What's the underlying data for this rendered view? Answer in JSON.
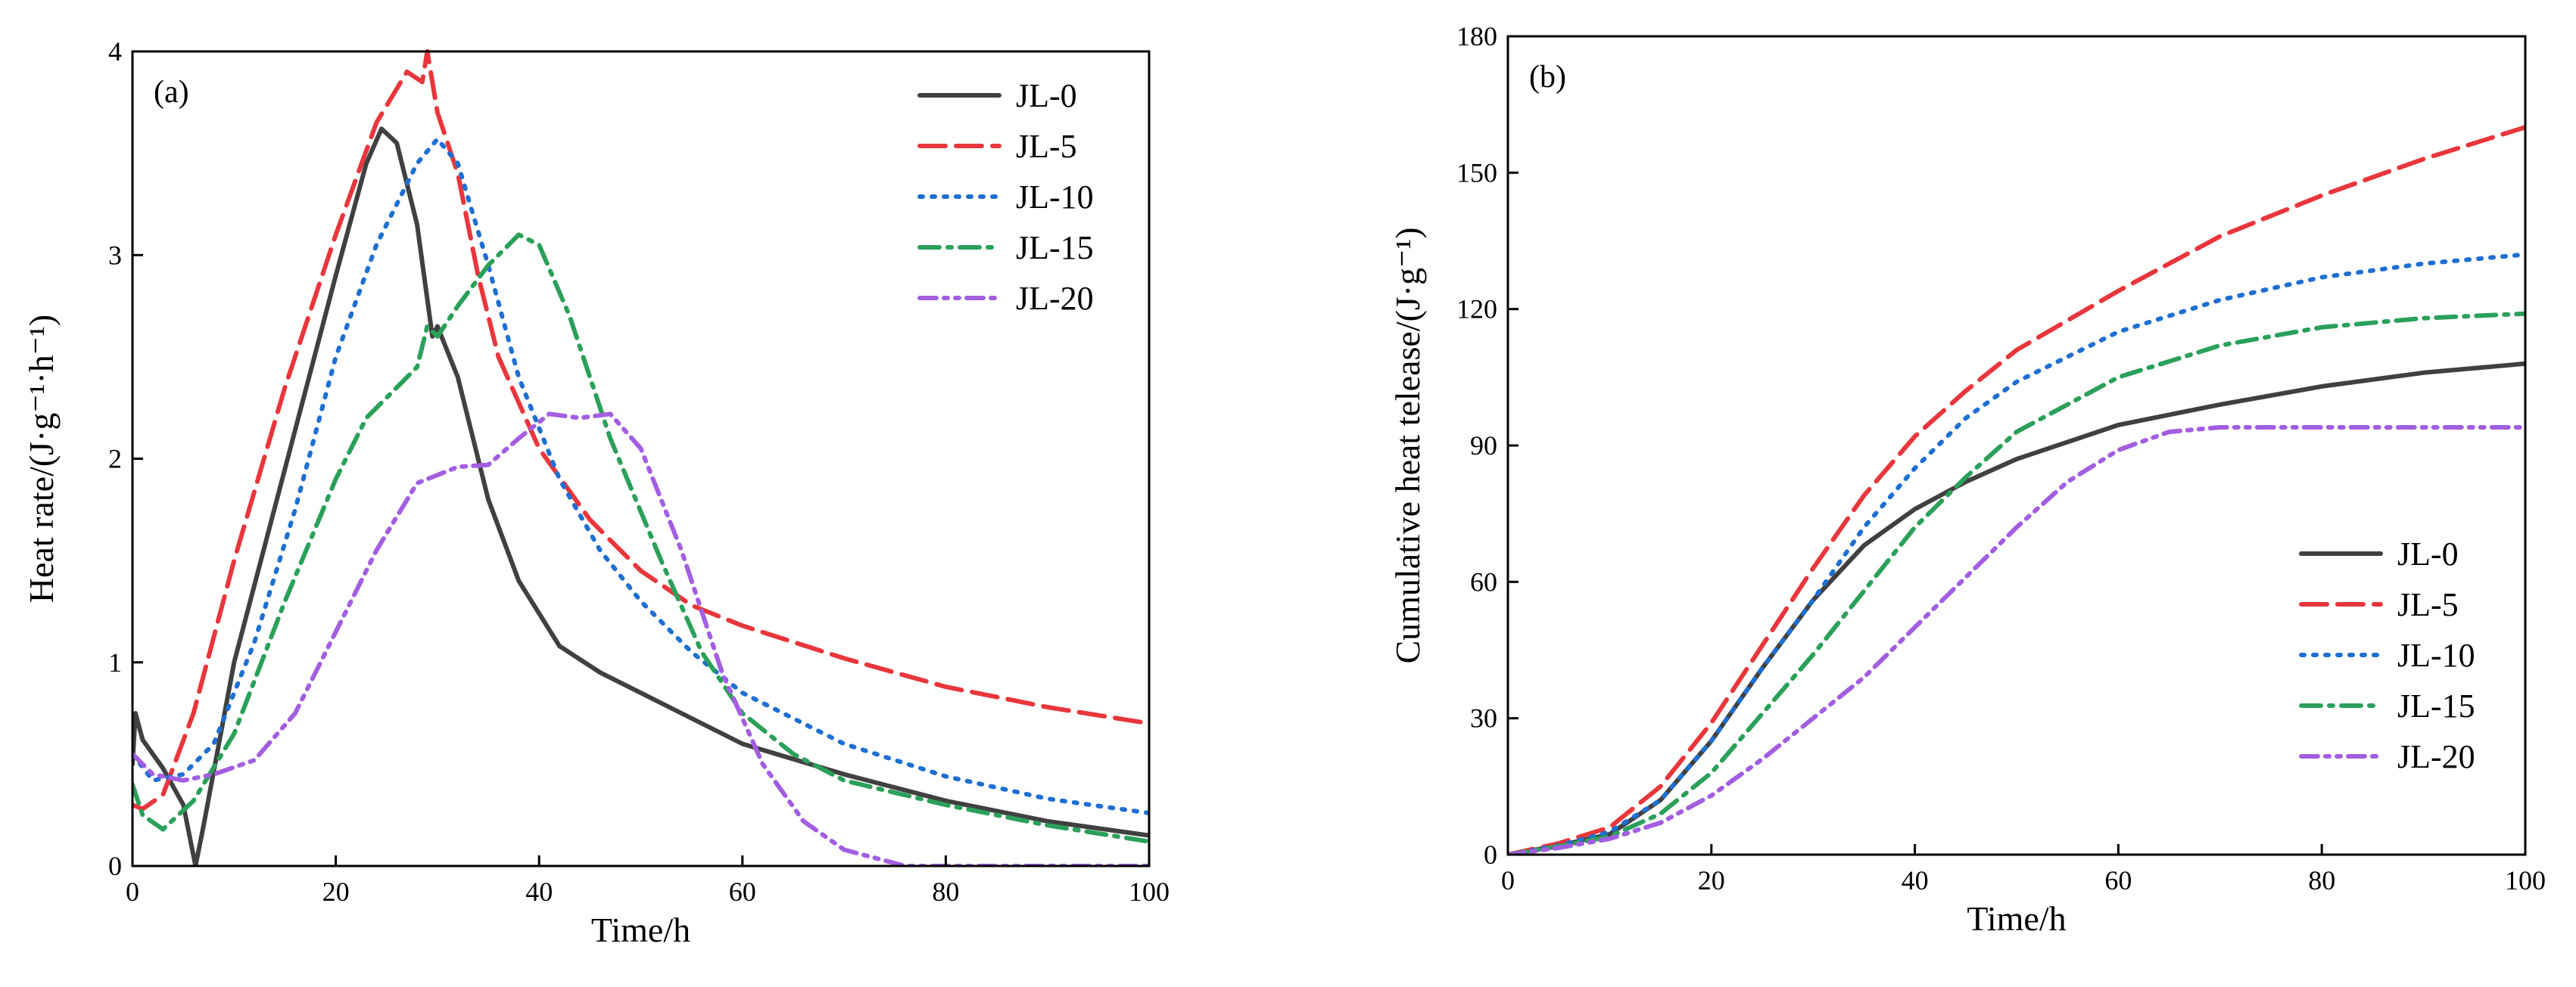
{
  "chart_data": [
    {
      "type": "line",
      "panel_label": "(a)",
      "xlabel": "Time/h",
      "ylabel": "Heat rate/(J·g⁻¹·h⁻¹)",
      "xlim": [
        0,
        100
      ],
      "ylim": [
        0,
        4
      ],
      "xticks": [
        0,
        20,
        40,
        60,
        80,
        100
      ],
      "yticks": [
        0,
        1,
        2,
        3,
        4
      ],
      "legend_position": "top-right",
      "series": [
        {
          "name": "JL-0",
          "color": "#404040",
          "dash": "solid",
          "points": [
            [
              0,
              0.5
            ],
            [
              0.3,
              0.75
            ],
            [
              1,
              0.62
            ],
            [
              3,
              0.48
            ],
            [
              5,
              0.3
            ],
            [
              6.2,
              0
            ],
            [
              7,
              0.2
            ],
            [
              10,
              1.0
            ],
            [
              15,
              1.95
            ],
            [
              20,
              2.9
            ],
            [
              23,
              3.45
            ],
            [
              24.5,
              3.62
            ],
            [
              26,
              3.55
            ],
            [
              28,
              3.15
            ],
            [
              29.5,
              2.6
            ],
            [
              30,
              2.65
            ],
            [
              32,
              2.4
            ],
            [
              35,
              1.8
            ],
            [
              38,
              1.4
            ],
            [
              42,
              1.08
            ],
            [
              46,
              0.95
            ],
            [
              50,
              0.85
            ],
            [
              60,
              0.6
            ],
            [
              70,
              0.45
            ],
            [
              80,
              0.32
            ],
            [
              90,
              0.22
            ],
            [
              100,
              0.15
            ]
          ]
        },
        {
          "name": "JL-5",
          "color": "#e8363c",
          "dash": "long-dash",
          "points": [
            [
              0,
              0.3
            ],
            [
              1,
              0.28
            ],
            [
              3,
              0.35
            ],
            [
              6,
              0.75
            ],
            [
              10,
              1.5
            ],
            [
              15,
              2.35
            ],
            [
              20,
              3.1
            ],
            [
              24,
              3.65
            ],
            [
              27,
              3.9
            ],
            [
              28.5,
              3.85
            ],
            [
              29,
              4.0
            ],
            [
              30,
              3.7
            ],
            [
              32,
              3.4
            ],
            [
              34,
              2.9
            ],
            [
              36,
              2.5
            ],
            [
              40,
              2.05
            ],
            [
              45,
              1.7
            ],
            [
              50,
              1.45
            ],
            [
              55,
              1.28
            ],
            [
              60,
              1.18
            ],
            [
              70,
              1.02
            ],
            [
              80,
              0.88
            ],
            [
              90,
              0.78
            ],
            [
              100,
              0.7
            ]
          ]
        },
        {
          "name": "JL-10",
          "color": "#1f6fd1",
          "dash": "dot",
          "points": [
            [
              0,
              0.55
            ],
            [
              2,
              0.42
            ],
            [
              5,
              0.45
            ],
            [
              8,
              0.6
            ],
            [
              12,
              1.1
            ],
            [
              16,
              1.75
            ],
            [
              20,
              2.5
            ],
            [
              24,
              3.05
            ],
            [
              28,
              3.45
            ],
            [
              30,
              3.57
            ],
            [
              32,
              3.45
            ],
            [
              35,
              2.95
            ],
            [
              38,
              2.4
            ],
            [
              42,
              1.9
            ],
            [
              46,
              1.55
            ],
            [
              50,
              1.3
            ],
            [
              55,
              1.05
            ],
            [
              60,
              0.85
            ],
            [
              70,
              0.6
            ],
            [
              80,
              0.44
            ],
            [
              90,
              0.33
            ],
            [
              100,
              0.26
            ]
          ]
        },
        {
          "name": "JL-15",
          "color": "#2ba05a",
          "dash": "dash-dot",
          "points": [
            [
              0,
              0.4
            ],
            [
              1,
              0.25
            ],
            [
              3,
              0.18
            ],
            [
              6,
              0.32
            ],
            [
              10,
              0.65
            ],
            [
              15,
              1.3
            ],
            [
              20,
              1.9
            ],
            [
              23,
              2.2
            ],
            [
              26,
              2.35
            ],
            [
              28,
              2.45
            ],
            [
              29,
              2.65
            ],
            [
              30,
              2.6
            ],
            [
              32,
              2.75
            ],
            [
              35,
              2.95
            ],
            [
              38,
              3.1
            ],
            [
              40,
              3.05
            ],
            [
              43,
              2.7
            ],
            [
              47,
              2.1
            ],
            [
              52,
              1.5
            ],
            [
              56,
              1.05
            ],
            [
              60,
              0.75
            ],
            [
              65,
              0.55
            ],
            [
              70,
              0.42
            ],
            [
              80,
              0.3
            ],
            [
              90,
              0.2
            ],
            [
              100,
              0.12
            ]
          ]
        },
        {
          "name": "JL-20",
          "color": "#a35ee0",
          "dash": "dash-dot-dot",
          "points": [
            [
              0,
              0.55
            ],
            [
              2,
              0.45
            ],
            [
              5,
              0.42
            ],
            [
              8,
              0.45
            ],
            [
              12,
              0.52
            ],
            [
              16,
              0.75
            ],
            [
              20,
              1.15
            ],
            [
              24,
              1.55
            ],
            [
              28,
              1.88
            ],
            [
              32,
              1.96
            ],
            [
              35,
              1.97
            ],
            [
              38,
              2.1
            ],
            [
              41,
              2.22
            ],
            [
              44,
              2.2
            ],
            [
              47,
              2.22
            ],
            [
              50,
              2.05
            ],
            [
              54,
              1.55
            ],
            [
              58,
              0.95
            ],
            [
              62,
              0.5
            ],
            [
              66,
              0.22
            ],
            [
              70,
              0.08
            ],
            [
              76,
              0
            ],
            [
              100,
              0
            ]
          ]
        }
      ]
    },
    {
      "type": "line",
      "panel_label": "(b)",
      "xlabel": "Time/h",
      "ylabel": "Cumulative heat telease/(J·g⁻¹)",
      "xlim": [
        0,
        100
      ],
      "ylim": [
        0,
        180
      ],
      "xticks": [
        0,
        20,
        40,
        60,
        80,
        100
      ],
      "yticks": [
        0,
        30,
        60,
        90,
        120,
        150,
        180
      ],
      "legend_position": "bottom-right",
      "series": [
        {
          "name": "JL-0",
          "color": "#404040",
          "dash": "solid",
          "points": [
            [
              0,
              0
            ],
            [
              5,
              2
            ],
            [
              10,
              4.5
            ],
            [
              15,
              12
            ],
            [
              20,
              25
            ],
            [
              25,
              41
            ],
            [
              30,
              56
            ],
            [
              35,
              68
            ],
            [
              40,
              76
            ],
            [
              45,
              82
            ],
            [
              50,
              87
            ],
            [
              60,
              94.5
            ],
            [
              70,
              99
            ],
            [
              80,
              103
            ],
            [
              90,
              106
            ],
            [
              100,
              108
            ]
          ]
        },
        {
          "name": "JL-5",
          "color": "#e8363c",
          "dash": "long-dash",
          "points": [
            [
              0,
              0
            ],
            [
              5,
              2.5
            ],
            [
              10,
              6
            ],
            [
              15,
              15
            ],
            [
              20,
              29
            ],
            [
              25,
              46
            ],
            [
              30,
              63
            ],
            [
              35,
              79
            ],
            [
              40,
              92
            ],
            [
              45,
              102
            ],
            [
              50,
              111
            ],
            [
              60,
              124
            ],
            [
              70,
              136
            ],
            [
              80,
              145
            ],
            [
              90,
              153
            ],
            [
              100,
              160
            ]
          ]
        },
        {
          "name": "JL-10",
          "color": "#1f6fd1",
          "dash": "dot",
          "points": [
            [
              0,
              0
            ],
            [
              5,
              2
            ],
            [
              10,
              5
            ],
            [
              15,
              12
            ],
            [
              20,
              25
            ],
            [
              25,
              41
            ],
            [
              30,
              56
            ],
            [
              35,
              72
            ],
            [
              40,
              85
            ],
            [
              45,
              96
            ],
            [
              50,
              104
            ],
            [
              60,
              115
            ],
            [
              70,
              122
            ],
            [
              80,
              127
            ],
            [
              90,
              130
            ],
            [
              100,
              132
            ]
          ]
        },
        {
          "name": "JL-15",
          "color": "#2ba05a",
          "dash": "dash-dot",
          "points": [
            [
              0,
              0
            ],
            [
              5,
              1.8
            ],
            [
              10,
              4
            ],
            [
              15,
              9
            ],
            [
              20,
              18
            ],
            [
              25,
              31
            ],
            [
              30,
              44
            ],
            [
              35,
              58
            ],
            [
              40,
              72
            ],
            [
              45,
              83
            ],
            [
              50,
              93
            ],
            [
              60,
              105
            ],
            [
              70,
              112
            ],
            [
              80,
              116
            ],
            [
              90,
              118
            ],
            [
              100,
              119
            ]
          ]
        },
        {
          "name": "JL-20",
          "color": "#a35ee0",
          "dash": "dash-dot-dot",
          "points": [
            [
              0,
              0
            ],
            [
              5,
              1.5
            ],
            [
              10,
              3.5
            ],
            [
              15,
              7
            ],
            [
              20,
              13
            ],
            [
              25,
              21
            ],
            [
              30,
              30
            ],
            [
              35,
              39
            ],
            [
              40,
              50
            ],
            [
              45,
              61
            ],
            [
              50,
              72
            ],
            [
              55,
              82
            ],
            [
              60,
              89
            ],
            [
              65,
              93
            ],
            [
              70,
              94
            ],
            [
              80,
              94
            ],
            [
              90,
              94
            ],
            [
              100,
              94
            ]
          ]
        }
      ]
    }
  ]
}
